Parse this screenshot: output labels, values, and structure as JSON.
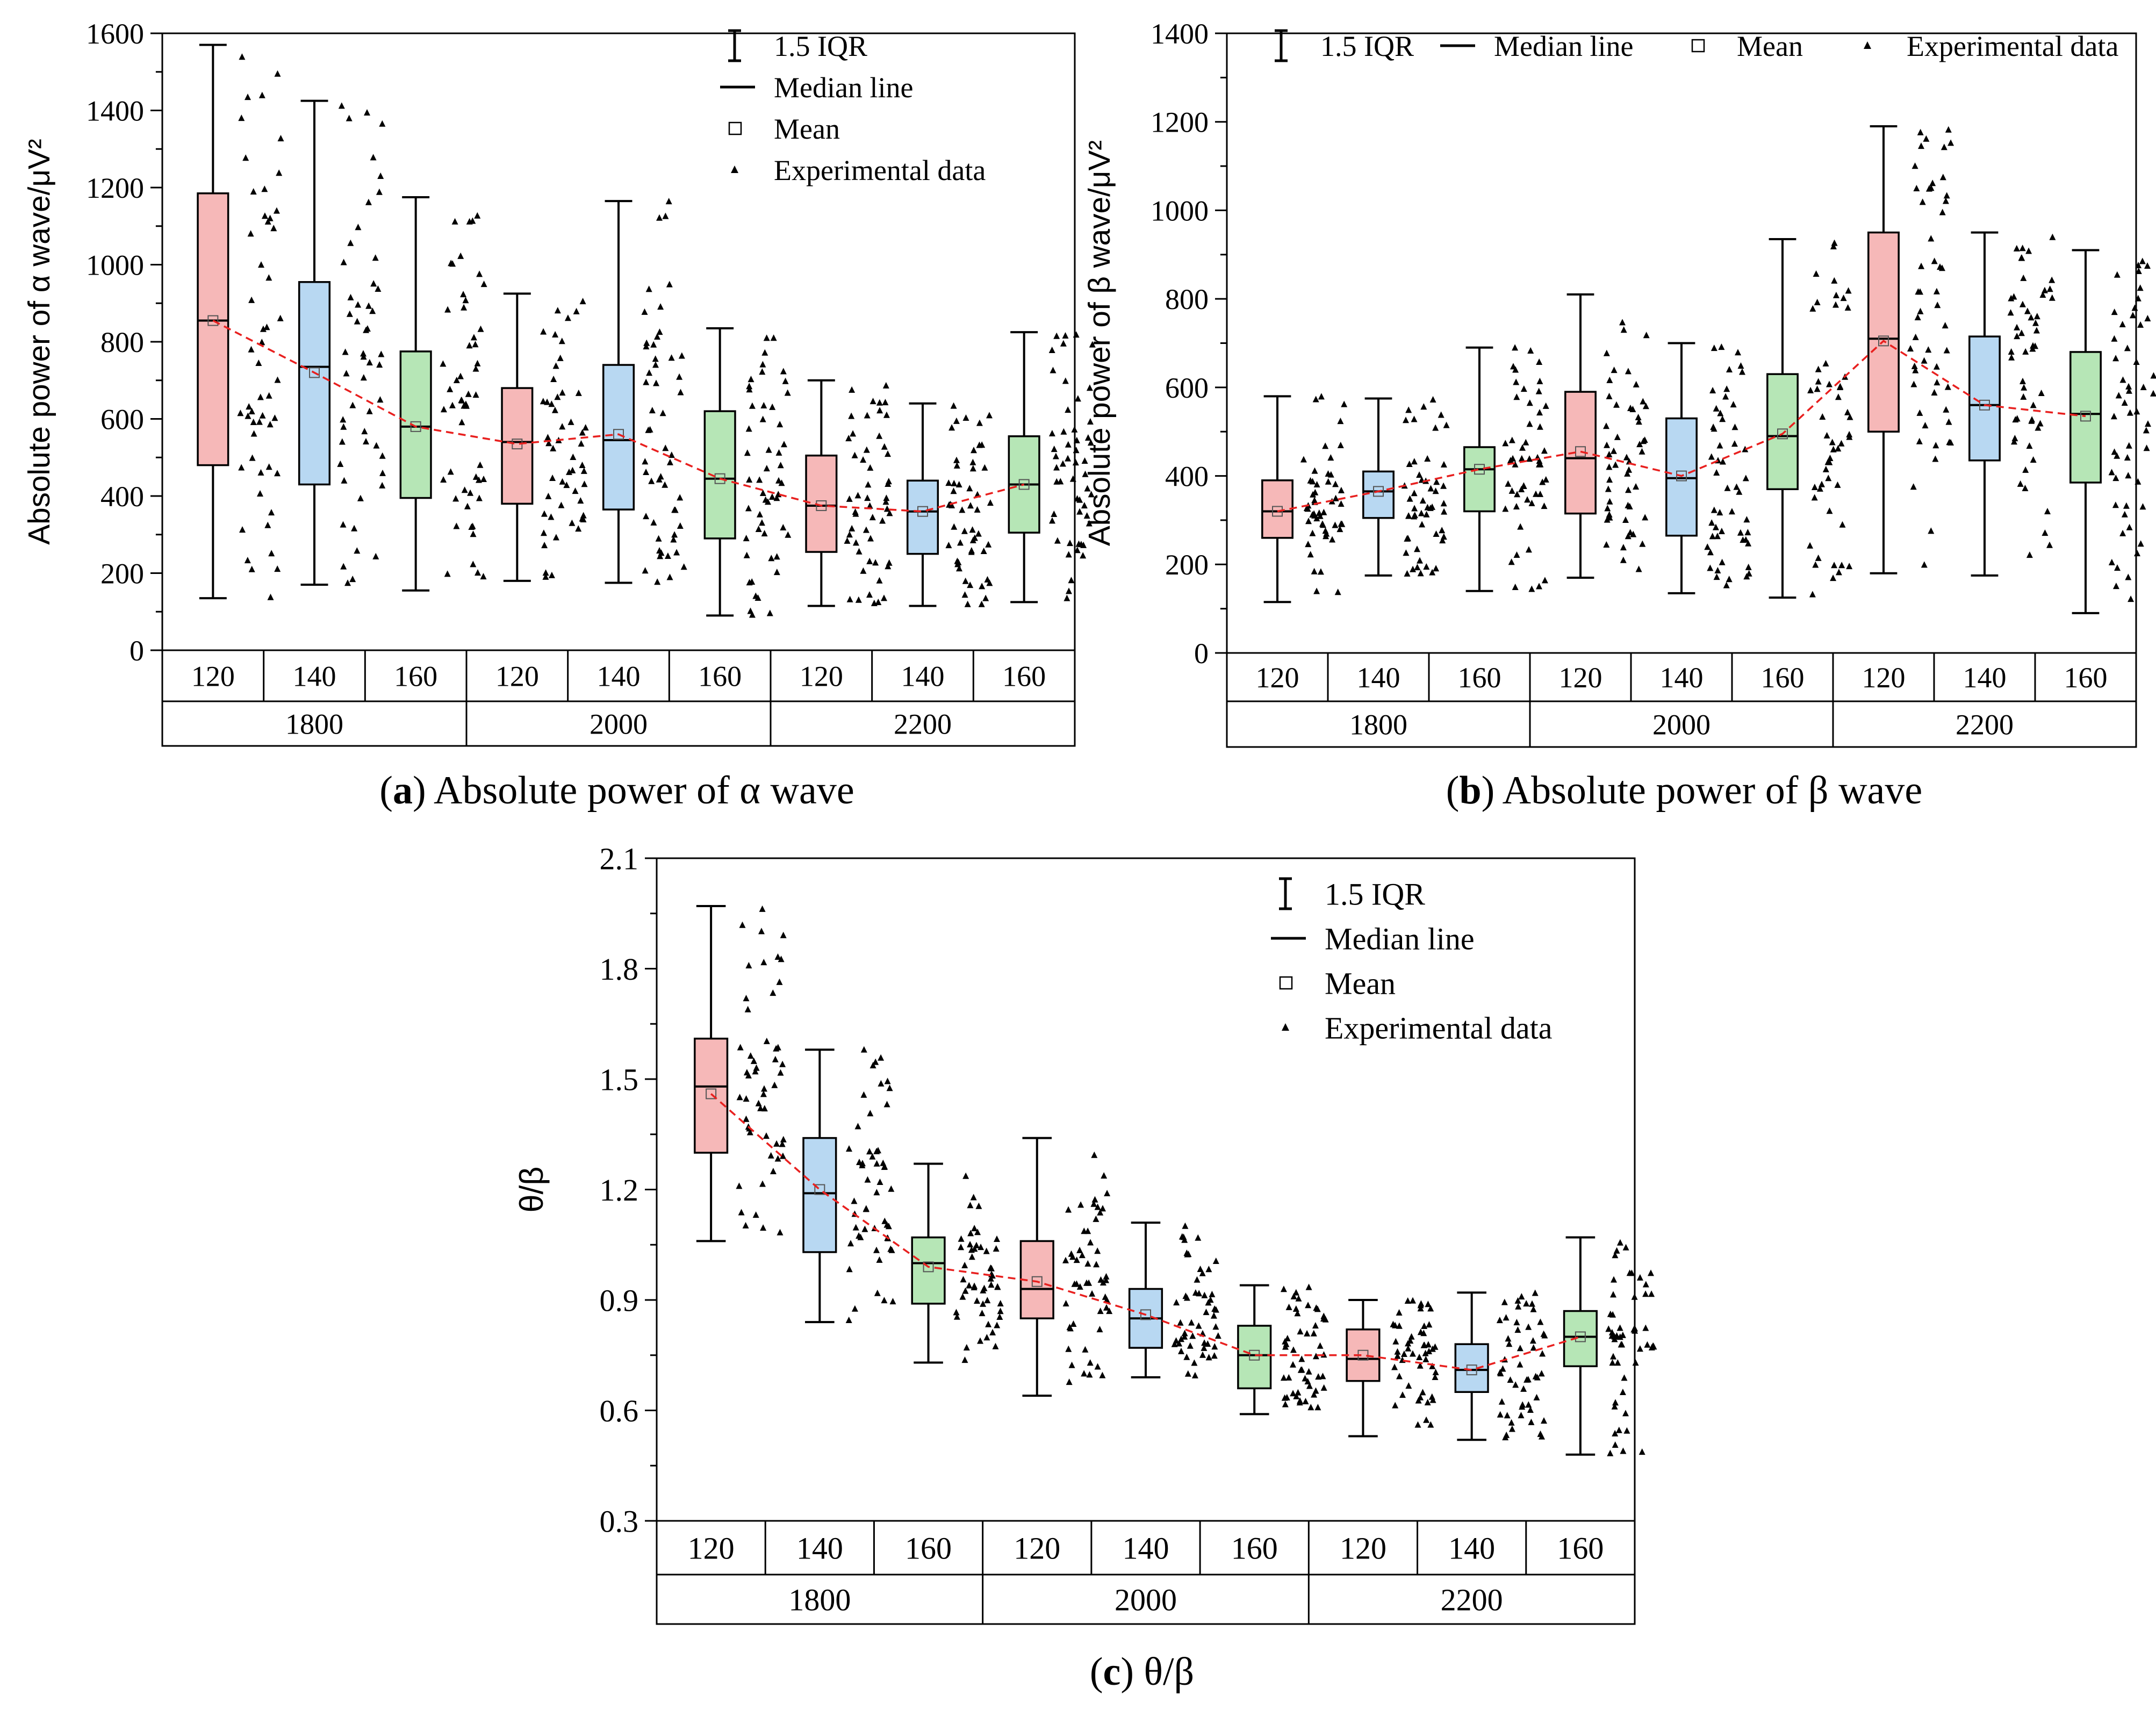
{
  "chart_data": [
    {
      "id": "a",
      "type": "box",
      "caption_letter": "a",
      "caption_text": "Absolute power of α wave",
      "ylabel": "Absolute power of α wave/μV²",
      "ylim": [
        0,
        1600
      ],
      "yticks": [
        0,
        200,
        400,
        600,
        800,
        1000,
        1200,
        1400,
        1600
      ],
      "legend": {
        "placement": "top-right",
        "layout": "vertical",
        "items": [
          "1.5 IQR",
          "Median line",
          "Mean",
          "Experimental data"
        ]
      },
      "groups": [
        "1800",
        "2000",
        "2200"
      ],
      "subcategories": [
        "120",
        "140",
        "160"
      ],
      "colors": [
        "#f6b8b8",
        "#b8d8f2",
        "#b6e6b6"
      ],
      "boxes": [
        {
          "group": "1800",
          "sub": "120",
          "whisker_low": 135,
          "q1": 480,
          "median": 855,
          "q3": 1185,
          "whisker_high": 1570,
          "mean": 855
        },
        {
          "group": "1800",
          "sub": "140",
          "whisker_low": 170,
          "q1": 430,
          "median": 735,
          "q3": 955,
          "whisker_high": 1425,
          "mean": 720
        },
        {
          "group": "1800",
          "sub": "160",
          "whisker_low": 155,
          "q1": 395,
          "median": 580,
          "q3": 775,
          "whisker_high": 1175,
          "mean": 580
        },
        {
          "group": "2000",
          "sub": "120",
          "whisker_low": 180,
          "q1": 380,
          "median": 540,
          "q3": 680,
          "whisker_high": 925,
          "mean": 535
        },
        {
          "group": "2000",
          "sub": "140",
          "whisker_low": 175,
          "q1": 365,
          "median": 545,
          "q3": 740,
          "whisker_high": 1165,
          "mean": 560
        },
        {
          "group": "2000",
          "sub": "160",
          "whisker_low": 90,
          "q1": 290,
          "median": 445,
          "q3": 620,
          "whisker_high": 835,
          "mean": 445
        },
        {
          "group": "2200",
          "sub": "120",
          "whisker_low": 115,
          "q1": 255,
          "median": 375,
          "q3": 505,
          "whisker_high": 700,
          "mean": 375
        },
        {
          "group": "2200",
          "sub": "140",
          "whisker_low": 115,
          "q1": 250,
          "median": 360,
          "q3": 440,
          "whisker_high": 640,
          "mean": 360
        },
        {
          "group": "2200",
          "sub": "160",
          "whisker_low": 125,
          "q1": 305,
          "median": 430,
          "q3": 555,
          "whisker_high": 825,
          "mean": 430
        }
      ],
      "mean_line": [
        855,
        720,
        580,
        535,
        560,
        445,
        375,
        360,
        430
      ]
    },
    {
      "id": "b",
      "type": "box",
      "caption_letter": "b",
      "caption_text": "Absolute power of β wave",
      "ylabel": "Absolute power of β wave/μV²",
      "ylim": [
        0,
        1400
      ],
      "yticks": [
        0,
        200,
        400,
        600,
        800,
        1000,
        1200,
        1400
      ],
      "legend": {
        "placement": "top",
        "layout": "horizontal",
        "items": [
          "1.5 IQR",
          "Median line",
          "Mean",
          "Experimental data"
        ]
      },
      "groups": [
        "1800",
        "2000",
        "2200"
      ],
      "subcategories": [
        "120",
        "140",
        "160"
      ],
      "colors": [
        "#f6b8b8",
        "#b8d8f2",
        "#b6e6b6"
      ],
      "boxes": [
        {
          "group": "1800",
          "sub": "120",
          "whisker_low": 115,
          "q1": 260,
          "median": 320,
          "q3": 390,
          "whisker_high": 580,
          "mean": 320
        },
        {
          "group": "1800",
          "sub": "140",
          "whisker_low": 175,
          "q1": 305,
          "median": 365,
          "q3": 410,
          "whisker_high": 575,
          "mean": 365
        },
        {
          "group": "1800",
          "sub": "160",
          "whisker_low": 140,
          "q1": 320,
          "median": 415,
          "q3": 465,
          "whisker_high": 690,
          "mean": 415
        },
        {
          "group": "2000",
          "sub": "120",
          "whisker_low": 170,
          "q1": 315,
          "median": 440,
          "q3": 590,
          "whisker_high": 810,
          "mean": 455
        },
        {
          "group": "2000",
          "sub": "140",
          "whisker_low": 135,
          "q1": 265,
          "median": 395,
          "q3": 530,
          "whisker_high": 700,
          "mean": 400
        },
        {
          "group": "2000",
          "sub": "160",
          "whisker_low": 125,
          "q1": 370,
          "median": 490,
          "q3": 630,
          "whisker_high": 935,
          "mean": 495
        },
        {
          "group": "2200",
          "sub": "120",
          "whisker_low": 180,
          "q1": 500,
          "median": 710,
          "q3": 950,
          "whisker_high": 1190,
          "mean": 705
        },
        {
          "group": "2200",
          "sub": "140",
          "whisker_low": 175,
          "q1": 435,
          "median": 560,
          "q3": 715,
          "whisker_high": 950,
          "mean": 560
        },
        {
          "group": "2200",
          "sub": "160",
          "whisker_low": 90,
          "q1": 385,
          "median": 540,
          "q3": 680,
          "whisker_high": 910,
          "mean": 535
        }
      ],
      "mean_line": [
        320,
        365,
        415,
        455,
        400,
        495,
        705,
        560,
        535
      ]
    },
    {
      "id": "c",
      "type": "box",
      "caption_letter": "c",
      "caption_text": "θ/β",
      "ylabel": "θ/β",
      "ylim": [
        0.3,
        2.1
      ],
      "yticks": [
        0.3,
        0.6,
        0.9,
        1.2,
        1.5,
        1.8,
        2.1
      ],
      "legend": {
        "placement": "top-right",
        "layout": "vertical",
        "items": [
          "1.5 IQR",
          "Median line",
          "Mean",
          "Experimental data"
        ]
      },
      "groups": [
        "1800",
        "2000",
        "2200"
      ],
      "subcategories": [
        "120",
        "140",
        "160"
      ],
      "colors": [
        "#f6b8b8",
        "#b8d8f2",
        "#b6e6b6"
      ],
      "boxes": [
        {
          "group": "1800",
          "sub": "120",
          "whisker_low": 1.06,
          "q1": 1.3,
          "median": 1.48,
          "q3": 1.61,
          "whisker_high": 1.97,
          "mean": 1.46
        },
        {
          "group": "1800",
          "sub": "140",
          "whisker_low": 0.84,
          "q1": 1.03,
          "median": 1.19,
          "q3": 1.34,
          "whisker_high": 1.58,
          "mean": 1.2
        },
        {
          "group": "1800",
          "sub": "160",
          "whisker_low": 0.73,
          "q1": 0.89,
          "median": 1.0,
          "q3": 1.07,
          "whisker_high": 1.27,
          "mean": 0.99
        },
        {
          "group": "2000",
          "sub": "120",
          "whisker_low": 0.64,
          "q1": 0.85,
          "median": 0.93,
          "q3": 1.06,
          "whisker_high": 1.34,
          "mean": 0.95
        },
        {
          "group": "2000",
          "sub": "140",
          "whisker_low": 0.69,
          "q1": 0.77,
          "median": 0.85,
          "q3": 0.93,
          "whisker_high": 1.11,
          "mean": 0.86
        },
        {
          "group": "2000",
          "sub": "160",
          "whisker_low": 0.59,
          "q1": 0.66,
          "median": 0.75,
          "q3": 0.83,
          "whisker_high": 0.94,
          "mean": 0.75
        },
        {
          "group": "2200",
          "sub": "120",
          "whisker_low": 0.53,
          "q1": 0.68,
          "median": 0.74,
          "q3": 0.82,
          "whisker_high": 0.9,
          "mean": 0.75
        },
        {
          "group": "2200",
          "sub": "140",
          "whisker_low": 0.52,
          "q1": 0.65,
          "median": 0.71,
          "q3": 0.78,
          "whisker_high": 0.92,
          "mean": 0.71
        },
        {
          "group": "2200",
          "sub": "160",
          "whisker_low": 0.48,
          "q1": 0.72,
          "median": 0.8,
          "q3": 0.87,
          "whisker_high": 1.07,
          "mean": 0.8
        }
      ],
      "mean_line": [
        1.46,
        1.2,
        0.99,
        0.95,
        0.86,
        0.75,
        0.75,
        0.71,
        0.8
      ]
    }
  ],
  "styles": {
    "mean_line_color": "#e8201f",
    "axis_color": "#000000",
    "point_color": "#000000"
  }
}
